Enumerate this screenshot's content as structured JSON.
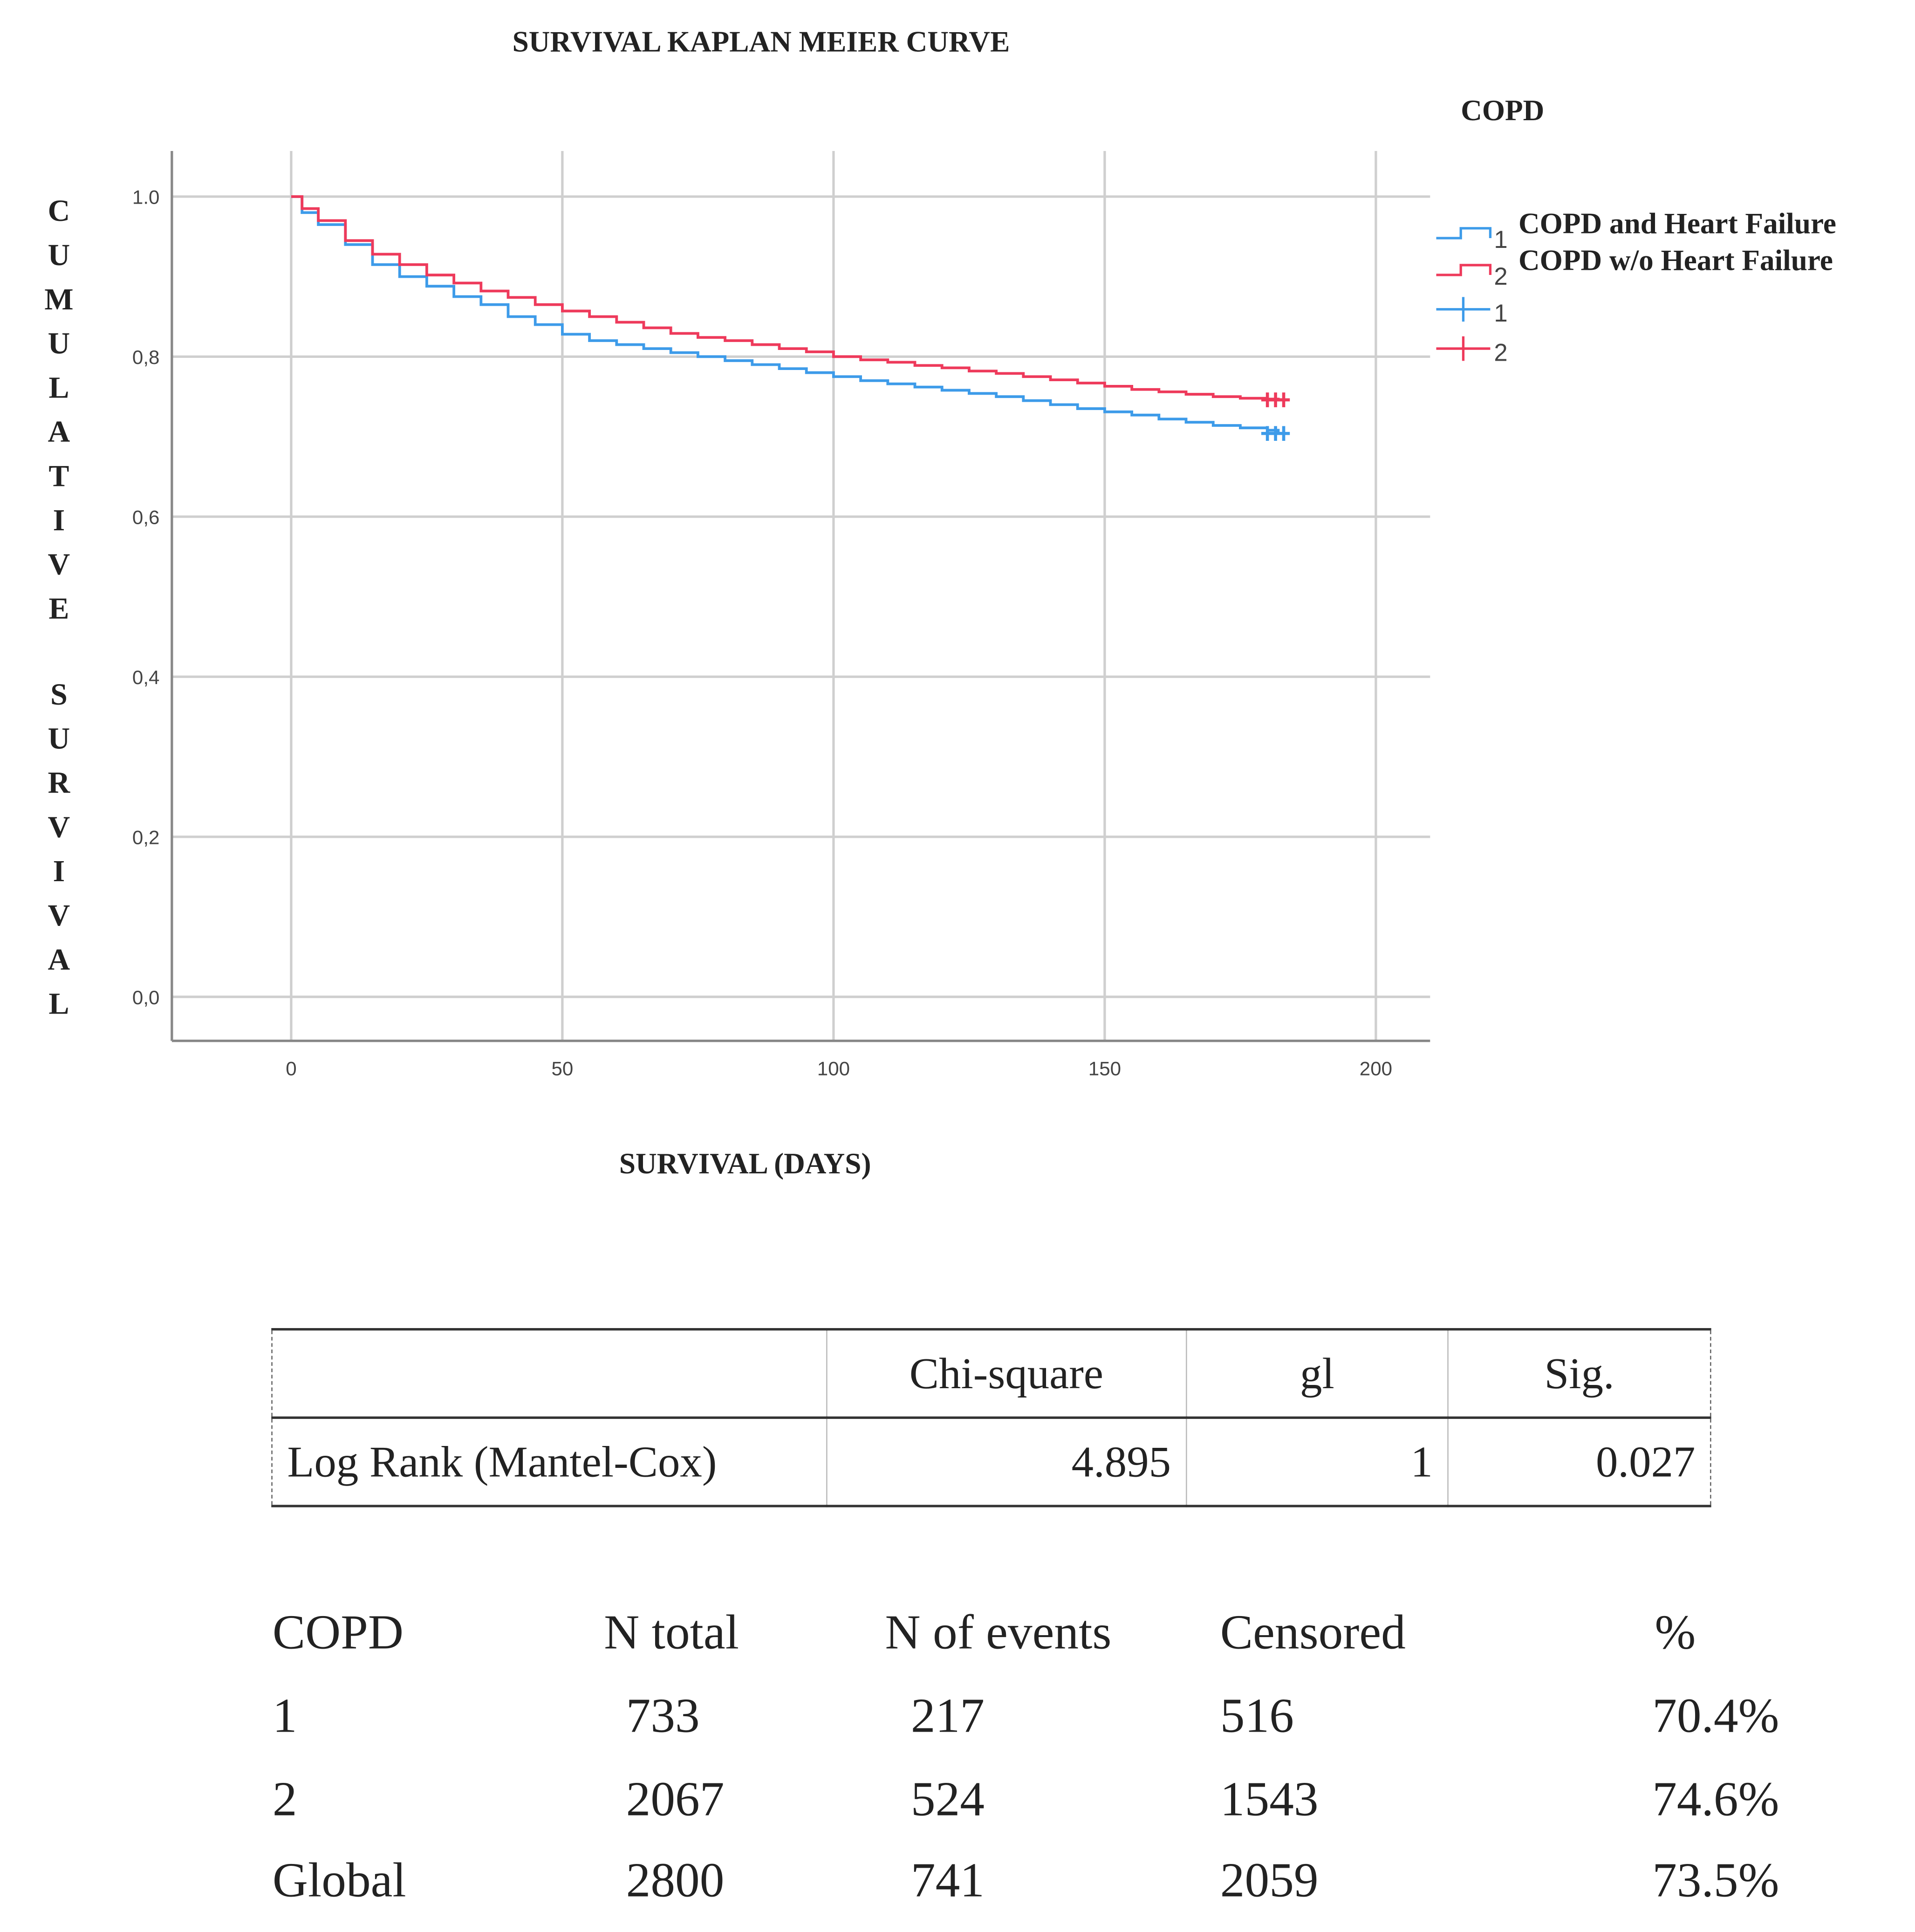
{
  "chart_data": {
    "type": "line",
    "title": "SURVIVAL KAPLAN MEIER CURVE",
    "xlabel": "SURVIVAL (DAYS)",
    "ylabel": "CUMULATIVE SURVIVAL",
    "xlim": [
      -22,
      210
    ],
    "ylim": [
      -0.055,
      1.057
    ],
    "xticks": [
      0,
      50,
      100,
      150,
      200
    ],
    "xtick_labels": [
      "0",
      "50",
      "100",
      "150",
      "200"
    ],
    "yticks": [
      0.0,
      0.2,
      0.4,
      0.6,
      0.8,
      1.0
    ],
    "ytick_labels": [
      "0,0",
      "0,2",
      "0,4",
      "0,6",
      "0,8",
      "1.0"
    ],
    "grid": true,
    "legend_title": "COPD",
    "legend_position": "top-right",
    "legend": [
      {
        "code": "1",
        "label": "COPD and Heart Failure",
        "kind": "line",
        "color": "#3d9be9"
      },
      {
        "code": "2",
        "label": "COPD w/o Heart Failure",
        "kind": "line",
        "color": "#ee3a5b"
      },
      {
        "code": "1",
        "label": "",
        "kind": "censor",
        "color": "#3d9be9"
      },
      {
        "code": "2",
        "label": "",
        "kind": "censor",
        "color": "#ee3a5b"
      }
    ],
    "series": [
      {
        "name": "COPD and Heart Failure",
        "code": "1",
        "color": "#3d9be9",
        "x": [
          0,
          2,
          5,
          10,
          15,
          20,
          25,
          30,
          35,
          40,
          45,
          50,
          55,
          60,
          65,
          70,
          75,
          80,
          85,
          90,
          95,
          100,
          105,
          110,
          115,
          120,
          125,
          130,
          135,
          140,
          145,
          150,
          155,
          160,
          165,
          170,
          175,
          180,
          182
        ],
        "y": [
          1.0,
          0.98,
          0.965,
          0.94,
          0.915,
          0.9,
          0.888,
          0.875,
          0.865,
          0.85,
          0.84,
          0.828,
          0.82,
          0.815,
          0.81,
          0.805,
          0.8,
          0.795,
          0.79,
          0.785,
          0.78,
          0.775,
          0.77,
          0.766,
          0.762,
          0.758,
          0.754,
          0.75,
          0.745,
          0.74,
          0.735,
          0.731,
          0.727,
          0.722,
          0.718,
          0.714,
          0.711,
          0.708,
          0.704
        ],
        "censored_x": [
          180,
          181.5,
          183
        ]
      },
      {
        "name": "COPD w/o Heart Failure",
        "code": "2",
        "color": "#ee3a5b",
        "x": [
          0,
          2,
          5,
          10,
          15,
          20,
          25,
          30,
          35,
          40,
          45,
          50,
          55,
          60,
          65,
          70,
          75,
          80,
          85,
          90,
          95,
          100,
          105,
          110,
          115,
          120,
          125,
          130,
          135,
          140,
          145,
          150,
          155,
          160,
          165,
          170,
          175,
          180,
          182
        ],
        "y": [
          1.0,
          0.985,
          0.97,
          0.945,
          0.928,
          0.915,
          0.902,
          0.892,
          0.882,
          0.874,
          0.865,
          0.857,
          0.85,
          0.843,
          0.836,
          0.829,
          0.824,
          0.82,
          0.815,
          0.81,
          0.806,
          0.8,
          0.796,
          0.793,
          0.789,
          0.786,
          0.782,
          0.779,
          0.775,
          0.771,
          0.767,
          0.763,
          0.759,
          0.756,
          0.753,
          0.75,
          0.748,
          0.747,
          0.746
        ],
        "censored_x": [
          180,
          181.5,
          183
        ]
      }
    ]
  },
  "stats_table": {
    "columns": [
      "",
      "Chi-square",
      "gl",
      "Sig."
    ],
    "rows": [
      {
        "test": "Log Rank (Mantel-Cox)",
        "chi_square": "4.895",
        "gl": "1",
        "sig": "0.027"
      }
    ]
  },
  "summary_table": {
    "columns": [
      "COPD",
      "N total",
      "N of events",
      "Censored",
      "%"
    ],
    "rows": [
      {
        "group": "1",
        "n_total": "733",
        "n_events": "217",
        "censored": "516",
        "pct": "70.4%"
      },
      {
        "group": "2",
        "n_total": "2067",
        "n_events": "524",
        "censored": "1543",
        "pct": "74.6%"
      },
      {
        "group": "Global",
        "n_total": "2800",
        "n_events": "741",
        "censored": "2059",
        "pct": "73.5%"
      }
    ]
  }
}
